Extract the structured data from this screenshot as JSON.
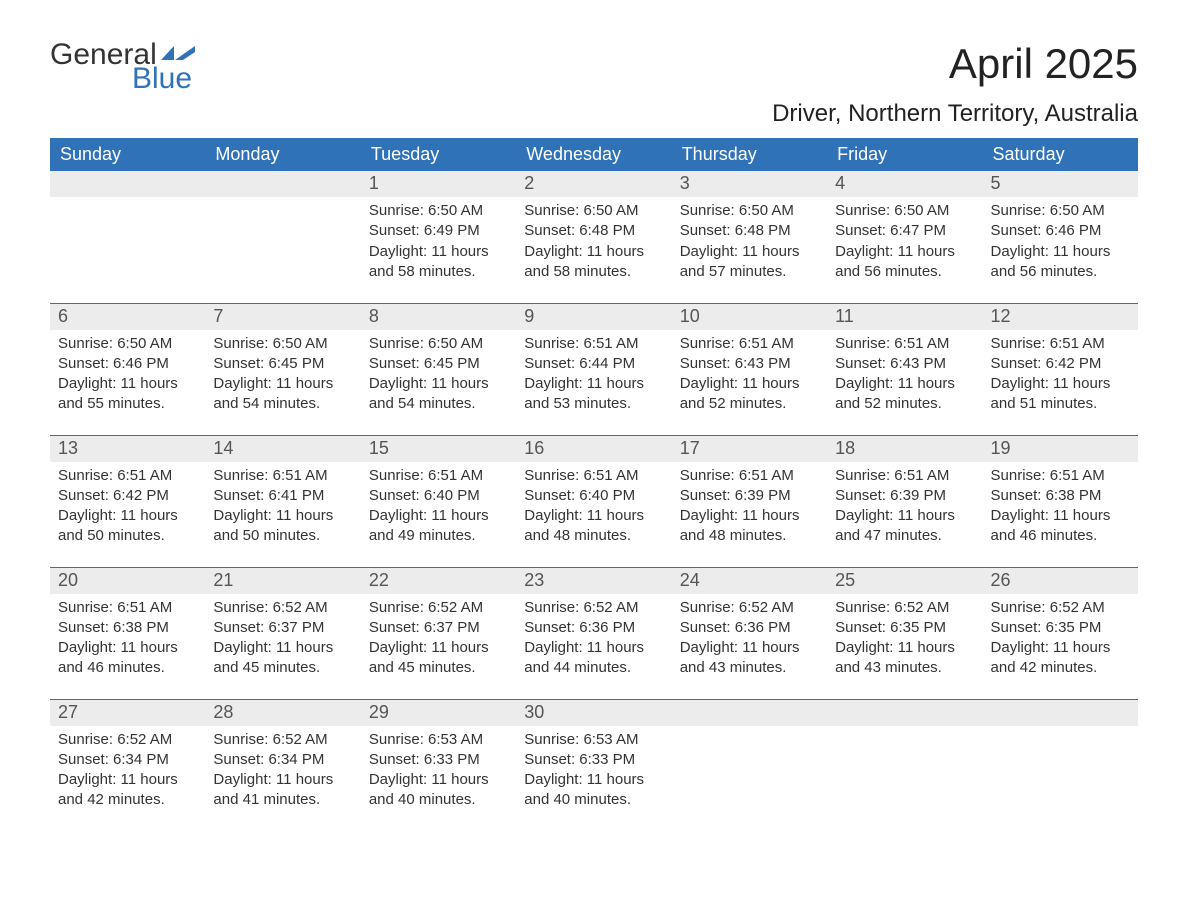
{
  "logo": {
    "word1": "General",
    "word2": "Blue",
    "flag_color": "#2f72b8"
  },
  "title": "April 2025",
  "subtitle": "Driver, Northern Territory, Australia",
  "colors": {
    "header_bg": "#2f72b8",
    "header_fg": "#ffffff",
    "daynum_bg": "#ececec",
    "daynum_fg": "#555555",
    "row_divider": "#2f72b8",
    "text": "#333333",
    "page_bg": "#ffffff"
  },
  "typography": {
    "title_fontsize_pt": 32,
    "subtitle_fontsize_pt": 18,
    "header_fontsize_pt": 14,
    "daynum_fontsize_pt": 14,
    "body_fontsize_pt": 11,
    "family": "Arial"
  },
  "labels": {
    "sunrise": "Sunrise:",
    "sunset": "Sunset:",
    "daylight": "Daylight:"
  },
  "columns": [
    "Sunday",
    "Monday",
    "Tuesday",
    "Wednesday",
    "Thursday",
    "Friday",
    "Saturday"
  ],
  "weeks": [
    [
      null,
      null,
      {
        "n": "1",
        "sr": "6:50 AM",
        "ss": "6:49 PM",
        "dl": "11 hours and 58 minutes."
      },
      {
        "n": "2",
        "sr": "6:50 AM",
        "ss": "6:48 PM",
        "dl": "11 hours and 58 minutes."
      },
      {
        "n": "3",
        "sr": "6:50 AM",
        "ss": "6:48 PM",
        "dl": "11 hours and 57 minutes."
      },
      {
        "n": "4",
        "sr": "6:50 AM",
        "ss": "6:47 PM",
        "dl": "11 hours and 56 minutes."
      },
      {
        "n": "5",
        "sr": "6:50 AM",
        "ss": "6:46 PM",
        "dl": "11 hours and 56 minutes."
      }
    ],
    [
      {
        "n": "6",
        "sr": "6:50 AM",
        "ss": "6:46 PM",
        "dl": "11 hours and 55 minutes."
      },
      {
        "n": "7",
        "sr": "6:50 AM",
        "ss": "6:45 PM",
        "dl": "11 hours and 54 minutes."
      },
      {
        "n": "8",
        "sr": "6:50 AM",
        "ss": "6:45 PM",
        "dl": "11 hours and 54 minutes."
      },
      {
        "n": "9",
        "sr": "6:51 AM",
        "ss": "6:44 PM",
        "dl": "11 hours and 53 minutes."
      },
      {
        "n": "10",
        "sr": "6:51 AM",
        "ss": "6:43 PM",
        "dl": "11 hours and 52 minutes."
      },
      {
        "n": "11",
        "sr": "6:51 AM",
        "ss": "6:43 PM",
        "dl": "11 hours and 52 minutes."
      },
      {
        "n": "12",
        "sr": "6:51 AM",
        "ss": "6:42 PM",
        "dl": "11 hours and 51 minutes."
      }
    ],
    [
      {
        "n": "13",
        "sr": "6:51 AM",
        "ss": "6:42 PM",
        "dl": "11 hours and 50 minutes."
      },
      {
        "n": "14",
        "sr": "6:51 AM",
        "ss": "6:41 PM",
        "dl": "11 hours and 50 minutes."
      },
      {
        "n": "15",
        "sr": "6:51 AM",
        "ss": "6:40 PM",
        "dl": "11 hours and 49 minutes."
      },
      {
        "n": "16",
        "sr": "6:51 AM",
        "ss": "6:40 PM",
        "dl": "11 hours and 48 minutes."
      },
      {
        "n": "17",
        "sr": "6:51 AM",
        "ss": "6:39 PM",
        "dl": "11 hours and 48 minutes."
      },
      {
        "n": "18",
        "sr": "6:51 AM",
        "ss": "6:39 PM",
        "dl": "11 hours and 47 minutes."
      },
      {
        "n": "19",
        "sr": "6:51 AM",
        "ss": "6:38 PM",
        "dl": "11 hours and 46 minutes."
      }
    ],
    [
      {
        "n": "20",
        "sr": "6:51 AM",
        "ss": "6:38 PM",
        "dl": "11 hours and 46 minutes."
      },
      {
        "n": "21",
        "sr": "6:52 AM",
        "ss": "6:37 PM",
        "dl": "11 hours and 45 minutes."
      },
      {
        "n": "22",
        "sr": "6:52 AM",
        "ss": "6:37 PM",
        "dl": "11 hours and 45 minutes."
      },
      {
        "n": "23",
        "sr": "6:52 AM",
        "ss": "6:36 PM",
        "dl": "11 hours and 44 minutes."
      },
      {
        "n": "24",
        "sr": "6:52 AM",
        "ss": "6:36 PM",
        "dl": "11 hours and 43 minutes."
      },
      {
        "n": "25",
        "sr": "6:52 AM",
        "ss": "6:35 PM",
        "dl": "11 hours and 43 minutes."
      },
      {
        "n": "26",
        "sr": "6:52 AM",
        "ss": "6:35 PM",
        "dl": "11 hours and 42 minutes."
      }
    ],
    [
      {
        "n": "27",
        "sr": "6:52 AM",
        "ss": "6:34 PM",
        "dl": "11 hours and 42 minutes."
      },
      {
        "n": "28",
        "sr": "6:52 AM",
        "ss": "6:34 PM",
        "dl": "11 hours and 41 minutes."
      },
      {
        "n": "29",
        "sr": "6:53 AM",
        "ss": "6:33 PM",
        "dl": "11 hours and 40 minutes."
      },
      {
        "n": "30",
        "sr": "6:53 AM",
        "ss": "6:33 PM",
        "dl": "11 hours and 40 minutes."
      },
      null,
      null,
      null
    ]
  ]
}
